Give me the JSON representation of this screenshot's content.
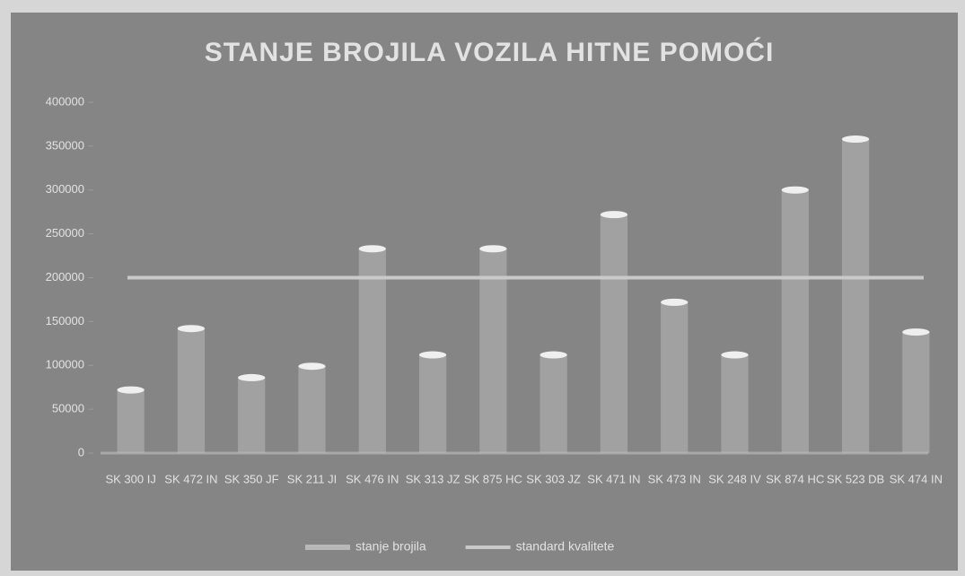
{
  "chart_data": {
    "type": "bar",
    "title": "STANJE BROJILA VOZILA HITNE POMOĆI",
    "categories": [
      "SK 300 IJ",
      "SK 472 IN",
      "SK 350 JF",
      "SK 211 JI",
      "SK 476 IN",
      "SK 313 JZ",
      "SK 875 HC",
      "SK 303 JZ",
      "SK 471 IN",
      "SK 473 IN",
      "SK 248 IV",
      "SK 874 HC",
      "SK 523 DB",
      "SK 474 IN"
    ],
    "series": [
      {
        "name": "stanje brojila",
        "color": "#b8b8b8",
        "values": [
          72000,
          142000,
          86000,
          99000,
          233000,
          112000,
          233000,
          112000,
          272000,
          172000,
          112000,
          300000,
          358000,
          138000
        ]
      },
      {
        "name": "standard kvalitete",
        "color": "#c9c9c9",
        "type": "line",
        "values": [
          200000,
          200000,
          200000,
          200000,
          200000,
          200000,
          200000,
          200000,
          200000,
          200000,
          200000,
          200000,
          200000,
          200000
        ]
      }
    ],
    "ylim": [
      0,
      400000
    ],
    "yticks": [
      0,
      50000,
      100000,
      150000,
      200000,
      250000,
      300000,
      350000,
      400000
    ],
    "legend": "bottom"
  }
}
